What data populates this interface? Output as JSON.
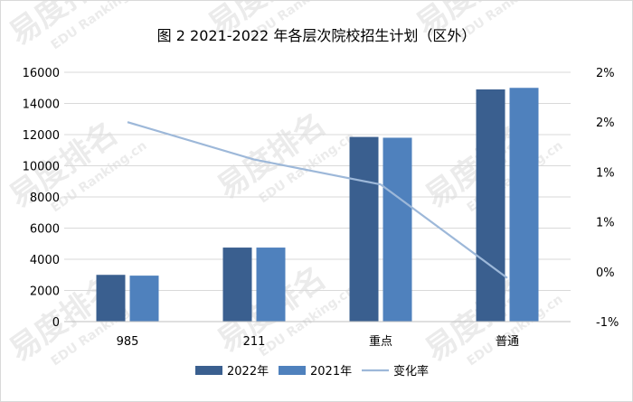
{
  "chart_data": {
    "type": "bar",
    "title": "图 2 2021-2022 年各层次院校招生计划（区外）",
    "categories": [
      "985",
      "211",
      "重点",
      "普通"
    ],
    "series": [
      {
        "name": "2022年",
        "type": "bar",
        "axis": "left",
        "color": "#3a5f8f",
        "values": [
          3000,
          4750,
          11850,
          14900
        ]
      },
      {
        "name": "2021年",
        "type": "bar",
        "axis": "left",
        "color": "#4f81bd",
        "values": [
          2950,
          4750,
          11800,
          15000
        ]
      },
      {
        "name": "变化率",
        "type": "line",
        "axis": "right",
        "color": "#9db8d9",
        "values": [
          2.2,
          1.6,
          1.2,
          -0.3
        ]
      }
    ],
    "left_axis": {
      "ylim": [
        0,
        16000
      ],
      "ticks": [
        "0",
        "2000",
        "4000",
        "6000",
        "8000",
        "10000",
        "12000",
        "14000",
        "16000"
      ]
    },
    "right_axis": {
      "ylim": [
        -1,
        3
      ],
      "ticks": [
        "-1%",
        "0%",
        "1%",
        "1%",
        "2%",
        "2%"
      ]
    },
    "legend_position": "bottom",
    "grid": "horizontal"
  },
  "watermark": {
    "brand": "易度排名",
    "sub": "EDU Ranking.cn"
  }
}
